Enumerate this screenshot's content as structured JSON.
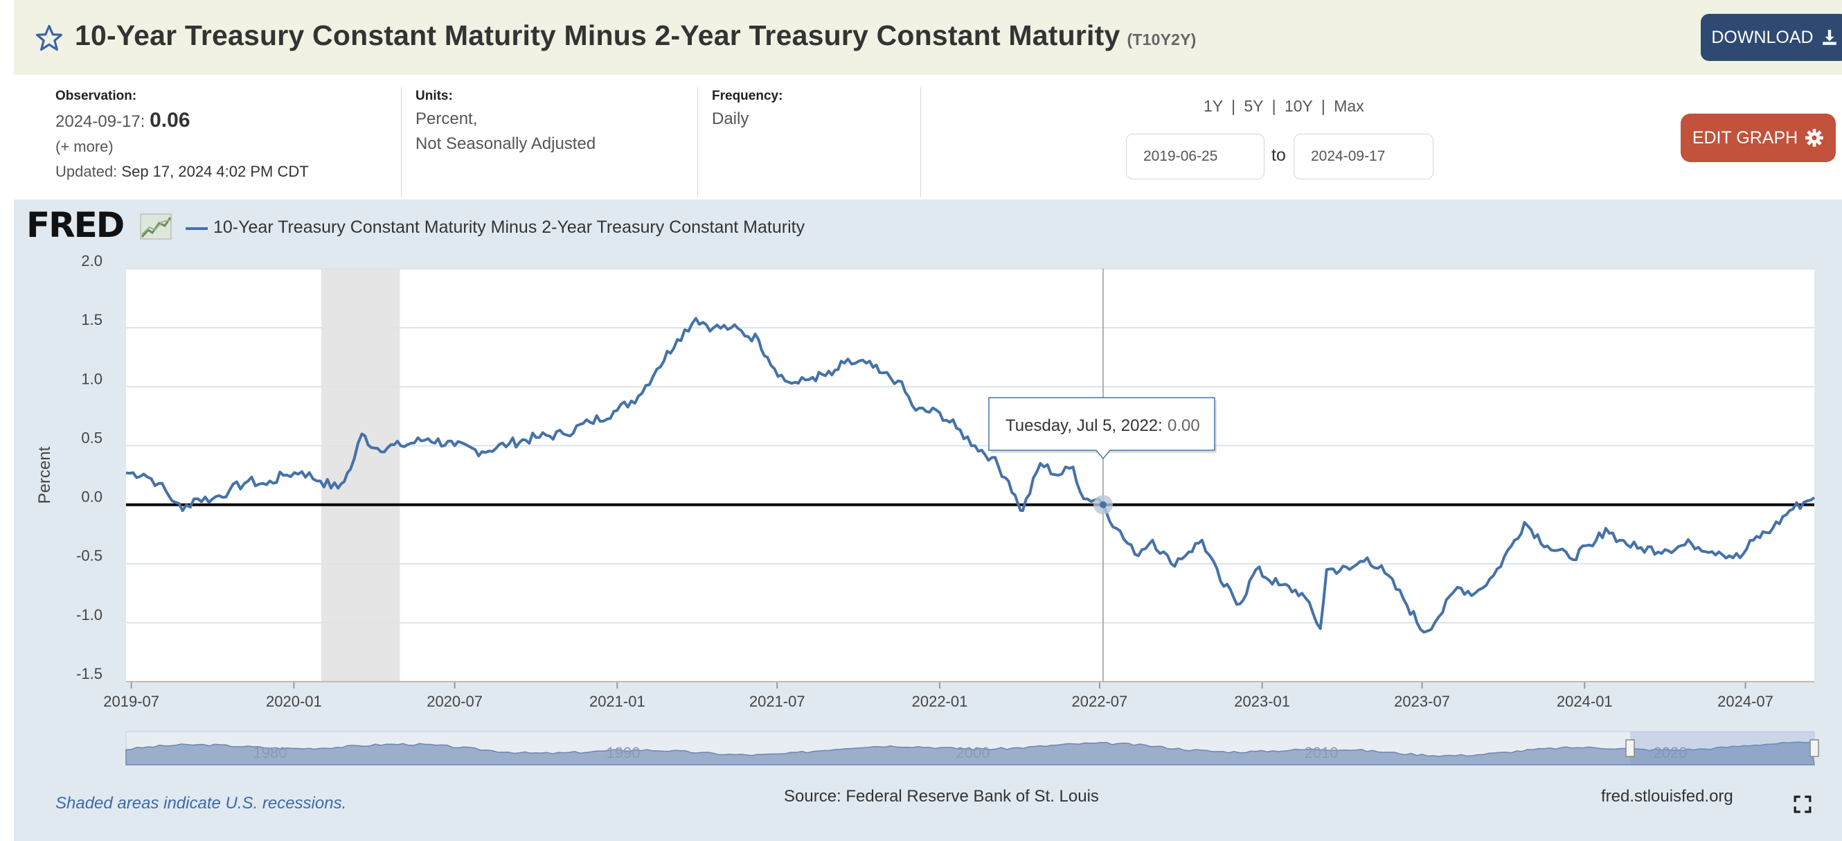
{
  "header": {
    "title": "10-Year Treasury Constant Maturity Minus 2-Year Treasury Constant Maturity",
    "series_id": "(T10Y2Y)",
    "download_label": "DOWNLOAD"
  },
  "meta": {
    "observation_label": "Observation:",
    "observation_date": "2024-09-17:",
    "observation_value": "0.06",
    "more": "(+ more)",
    "updated_label": "Updated:",
    "updated_value": "Sep 17, 2024 4:02 PM CDT",
    "units_label": "Units:",
    "units_line1": "Percent,",
    "units_line2": "Not Seasonally Adjusted",
    "frequency_label": "Frequency:",
    "frequency_value": "Daily"
  },
  "range": {
    "opt_1y": "1Y",
    "opt_5y": "5Y",
    "opt_10y": "10Y",
    "opt_max": "Max",
    "sep": "|",
    "start": "2019-06-25",
    "to": "to",
    "end": "2024-09-17",
    "edit_graph_label": "EDIT GRAPH"
  },
  "graph": {
    "logo": "FRED",
    "legend": "10-Year Treasury Constant Maturity Minus 2-Year Treasury Constant Maturity",
    "recession_note": "Shaded areas indicate U.S. recessions.",
    "source": "Source: Federal Reserve Bank of St. Louis",
    "url": "fred.stlouisfed.org"
  },
  "colors": {
    "series": "#4572a7",
    "recession": "#e5e5e5",
    "download_bg": "#2f4a72",
    "edit_bg": "#c2523b",
    "title_bg": "#f1f2e4",
    "graph_bg": "#e1e9f0"
  },
  "chart_data": {
    "type": "line",
    "title": "10-Year Treasury Constant Maturity Minus 2-Year Treasury Constant Maturity",
    "ylabel": "Percent",
    "xlabel": "",
    "ylim": [
      -1.5,
      2.0
    ],
    "yticks": [
      2.0,
      1.5,
      1.0,
      0.5,
      0.0,
      -0.5,
      -1.0,
      -1.5
    ],
    "ytick_labels": [
      "2.0",
      "1.5",
      "1.0",
      "0.5",
      "0.0",
      "-0.5",
      "-1.0",
      "-1.5"
    ],
    "xlim": [
      "2019-06-25",
      "2024-09-17"
    ],
    "xticks": [
      "2019-07",
      "2020-01",
      "2020-07",
      "2021-01",
      "2021-07",
      "2022-01",
      "2022-07",
      "2023-01",
      "2023-07",
      "2024-01",
      "2024-07"
    ],
    "recession": [
      "2020-02-01",
      "2020-04-30"
    ],
    "zero_line": 0,
    "tooltip": {
      "date": "2022-07-05",
      "label": "Tuesday, Jul 5, 2022:",
      "value": "0.00"
    },
    "navigator_labels": [
      "1980",
      "1990",
      "2000",
      "2010",
      "2020"
    ],
    "series": [
      {
        "name": "T10Y2Y",
        "points": [
          [
            "2019-06-25",
            0.27
          ],
          [
            "2019-07-15",
            0.26
          ],
          [
            "2019-08-01",
            0.18
          ],
          [
            "2019-08-20",
            0.02
          ],
          [
            "2019-08-28",
            -0.05
          ],
          [
            "2019-09-10",
            0.05
          ],
          [
            "2019-10-01",
            0.05
          ],
          [
            "2019-10-20",
            0.12
          ],
          [
            "2019-11-10",
            0.2
          ],
          [
            "2019-12-01",
            0.17
          ],
          [
            "2019-12-20",
            0.25
          ],
          [
            "2020-01-10",
            0.28
          ],
          [
            "2020-01-31",
            0.2
          ],
          [
            "2020-02-20",
            0.14
          ],
          [
            "2020-03-05",
            0.3
          ],
          [
            "2020-03-18",
            0.6
          ],
          [
            "2020-04-01",
            0.48
          ],
          [
            "2020-05-01",
            0.5
          ],
          [
            "2020-06-01",
            0.56
          ],
          [
            "2020-07-01",
            0.5
          ],
          [
            "2020-08-01",
            0.45
          ],
          [
            "2020-09-01",
            0.52
          ],
          [
            "2020-10-01",
            0.57
          ],
          [
            "2020-11-01",
            0.6
          ],
          [
            "2020-12-01",
            0.7
          ],
          [
            "2021-01-01",
            0.8
          ],
          [
            "2021-01-25",
            0.92
          ],
          [
            "2021-02-15",
            1.15
          ],
          [
            "2021-03-10",
            1.4
          ],
          [
            "2021-03-31",
            1.58
          ],
          [
            "2021-04-20",
            1.5
          ],
          [
            "2021-05-10",
            1.5
          ],
          [
            "2021-06-10",
            1.4
          ],
          [
            "2021-06-20",
            1.25
          ],
          [
            "2021-07-10",
            1.05
          ],
          [
            "2021-07-25",
            1.03
          ],
          [
            "2021-08-10",
            1.08
          ],
          [
            "2021-09-01",
            1.1
          ],
          [
            "2021-09-15",
            1.2
          ],
          [
            "2021-10-10",
            1.2
          ],
          [
            "2021-10-25",
            1.12
          ],
          [
            "2021-11-15",
            1.05
          ],
          [
            "2021-12-05",
            0.8
          ],
          [
            "2022-01-01",
            0.78
          ],
          [
            "2022-01-20",
            0.65
          ],
          [
            "2022-02-10",
            0.5
          ],
          [
            "2022-03-01",
            0.4
          ],
          [
            "2022-03-20",
            0.2
          ],
          [
            "2022-03-31",
            0.0
          ],
          [
            "2022-04-05",
            -0.05
          ],
          [
            "2022-04-25",
            0.35
          ],
          [
            "2022-05-15",
            0.25
          ],
          [
            "2022-06-01",
            0.32
          ],
          [
            "2022-06-13",
            0.05
          ],
          [
            "2022-06-30",
            0.05
          ],
          [
            "2022-07-05",
            0.0
          ],
          [
            "2022-07-20",
            -0.2
          ],
          [
            "2022-08-10",
            -0.42
          ],
          [
            "2022-08-30",
            -0.3
          ],
          [
            "2022-09-20",
            -0.5
          ],
          [
            "2022-10-10",
            -0.4
          ],
          [
            "2022-10-25",
            -0.3
          ],
          [
            "2022-11-15",
            -0.65
          ],
          [
            "2022-12-07",
            -0.84
          ],
          [
            "2022-12-25",
            -0.55
          ],
          [
            "2023-01-20",
            -0.68
          ],
          [
            "2023-02-15",
            -0.75
          ],
          [
            "2023-03-08",
            -1.05
          ],
          [
            "2023-03-15",
            -0.55
          ],
          [
            "2023-04-10",
            -0.55
          ],
          [
            "2023-04-30",
            -0.45
          ],
          [
            "2023-05-20",
            -0.58
          ],
          [
            "2023-06-10",
            -0.8
          ],
          [
            "2023-07-03",
            -1.08
          ],
          [
            "2023-07-20",
            -0.95
          ],
          [
            "2023-08-10",
            -0.7
          ],
          [
            "2023-08-30",
            -0.75
          ],
          [
            "2023-09-20",
            -0.6
          ],
          [
            "2023-10-10",
            -0.35
          ],
          [
            "2023-10-25",
            -0.15
          ],
          [
            "2023-11-20",
            -0.35
          ],
          [
            "2023-12-15",
            -0.45
          ],
          [
            "2024-01-10",
            -0.35
          ],
          [
            "2024-01-25",
            -0.2
          ],
          [
            "2024-02-10",
            -0.3
          ],
          [
            "2024-03-01",
            -0.37
          ],
          [
            "2024-04-01",
            -0.38
          ],
          [
            "2024-05-01",
            -0.33
          ],
          [
            "2024-06-01",
            -0.4
          ],
          [
            "2024-06-25",
            -0.45
          ],
          [
            "2024-07-10",
            -0.3
          ],
          [
            "2024-08-01",
            -0.2
          ],
          [
            "2024-08-20",
            -0.05
          ],
          [
            "2024-09-05",
            0.02
          ],
          [
            "2024-09-17",
            0.06
          ]
        ]
      }
    ]
  }
}
